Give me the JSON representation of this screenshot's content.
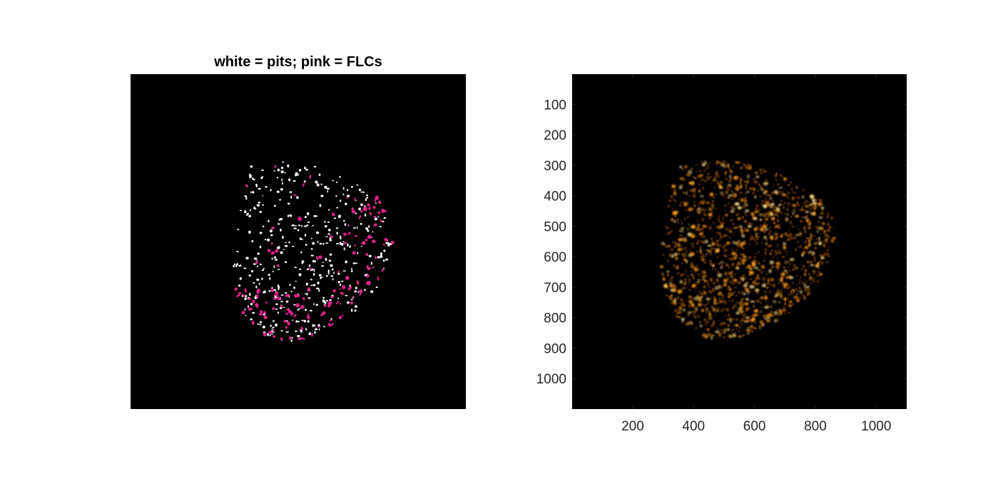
{
  "left_figure": {
    "title": "white = pits; pink = FLCs",
    "pit_color": "#ffffff",
    "flc_color": "#e0228c",
    "background_color": "#000000"
  },
  "right_figure": {
    "colormap": "hot",
    "background_color": "#000000",
    "glow_color": "#ff9a12",
    "highlight_color": "#ffe08a",
    "x_ticks": [
      "200",
      "400",
      "600",
      "800",
      "1000"
    ],
    "y_ticks": [
      "100",
      "200",
      "300",
      "400",
      "500",
      "600",
      "700",
      "800",
      "900",
      "1000"
    ],
    "x_lim": [
      1,
      1100
    ],
    "y_lim": [
      1,
      1100
    ]
  }
}
